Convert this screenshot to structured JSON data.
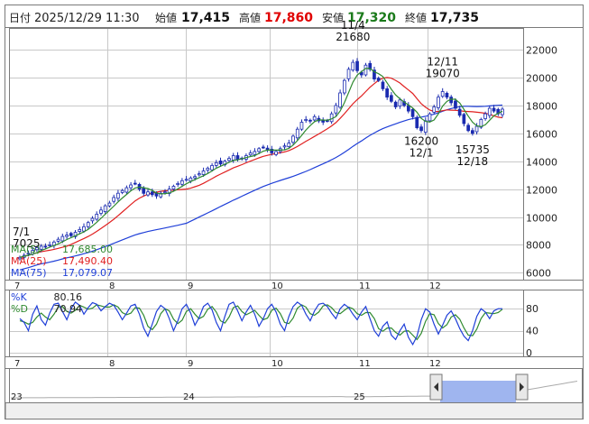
{
  "header": {
    "date_label": "日付",
    "datetime": "2025/12/29 11:30",
    "open_label": "始値",
    "open": "17,415",
    "high_label": "高値",
    "high": "17,860",
    "low_label": "安値",
    "low": "17,320",
    "close_label": "終値",
    "close": "17,735"
  },
  "colors": {
    "up_candle": "#ffffff",
    "down_candle": "#1a2bb0",
    "candle_outline": "#1a2bb0",
    "ma5": "#2f8a2f",
    "ma25": "#e02020",
    "ma75": "#1f3fd8",
    "stoch_k": "#1f3fd8",
    "stoch_d": "#2f8a2f",
    "high_text": "#e00000",
    "low_text": "#1a7a1a",
    "grid": "#c8c8c8",
    "border": "#7a7a7a",
    "nav_fill": "#9fb5ef"
  },
  "legend": [
    {
      "label": "MA(5)",
      "value": "17,685.00"
    },
    {
      "label": "MA(25)",
      "value": "17,490.40"
    },
    {
      "label": "MA(75)",
      "value": "17,079.07"
    }
  ],
  "stoch_legend": [
    {
      "label": "%K",
      "value": "80.16"
    },
    {
      "label": "%D",
      "value": "70.94"
    }
  ],
  "chart_data": {
    "type": "candlestick",
    "y_ticks": [
      "22000",
      "20000",
      "18000",
      "16000",
      "14000",
      "12000",
      "10000",
      "8000",
      "6000"
    ],
    "ylim": [
      5500,
      23500
    ],
    "month_labels": [
      "7",
      "8",
      "9",
      "10",
      "11",
      "12"
    ],
    "annotations": [
      {
        "date": "7/1",
        "value": "7025"
      },
      {
        "date": "11/4",
        "value": "21680"
      },
      {
        "date": "12/1",
        "value": "16200"
      },
      {
        "date": "12/11",
        "value": "19070"
      },
      {
        "date": "12/18",
        "value": "15735"
      }
    ],
    "closes": [
      7100,
      7250,
      7400,
      7600,
      7800,
      7900,
      7850,
      8000,
      8200,
      8400,
      8600,
      8700,
      8650,
      8900,
      9100,
      9300,
      9600,
      9900,
      10200,
      10500,
      10800,
      11000,
      11400,
      11700,
      11900,
      12100,
      12300,
      12400,
      12000,
      11700,
      11800,
      11600,
      11500,
      11700,
      11800,
      12000,
      12200,
      12400,
      12600,
      12700,
      12800,
      12900,
      13100,
      13300,
      13500,
      13700,
      13900,
      13800,
      14000,
      14200,
      14400,
      14100,
      14200,
      14400,
      14600,
      14700,
      14900,
      15000,
      14800,
      14600,
      14700,
      14900,
      15100,
      15300,
      15800,
      16300,
      16800,
      17000,
      16900,
      17200,
      16900,
      16800,
      16900,
      17400,
      18000,
      18900,
      19800,
      20600,
      21100,
      20500,
      20200,
      20900,
      20600,
      19900,
      19800,
      19200,
      18600,
      18300,
      17900,
      18400,
      18000,
      17600,
      17200,
      16400,
      16200,
      16900,
      17400,
      17900,
      18600,
      19000,
      18600,
      18200,
      17800,
      17300,
      16700,
      16200,
      16000,
      16500,
      17000,
      17400,
      17800,
      17600,
      17400,
      17735
    ],
    "stoch": {
      "k": [
        62,
        55,
        40,
        70,
        85,
        60,
        50,
        72,
        88,
        90,
        75,
        60,
        80,
        92,
        86,
        70,
        82,
        91,
        88,
        76,
        84,
        90,
        86,
        74,
        60,
        72,
        85,
        88,
        70,
        45,
        30,
        52,
        75,
        86,
        80,
        62,
        40,
        58,
        80,
        88,
        72,
        50,
        64,
        84,
        90,
        78,
        55,
        40,
        66,
        88,
        92,
        76,
        58,
        74,
        86,
        70,
        48,
        62,
        80,
        88,
        74,
        52,
        40,
        66,
        84,
        92,
        86,
        70,
        58,
        76,
        88,
        90,
        84,
        72,
        62,
        80,
        88,
        82,
        70,
        60,
        74,
        84,
        62,
        40,
        30,
        48,
        56,
        32,
        24,
        40,
        52,
        28,
        15,
        30,
        60,
        80,
        74,
        52,
        34,
        50,
        68,
        76,
        62,
        44,
        30,
        22,
        40,
        66,
        80,
        74,
        62,
        76,
        80,
        80
      ],
      "d": [
        58,
        56,
        52,
        55,
        65,
        72,
        65,
        60,
        70,
        83,
        84,
        75,
        72,
        77,
        86,
        83,
        79,
        81,
        87,
        85,
        83,
        83,
        87,
        83,
        73,
        69,
        72,
        82,
        81,
        68,
        48,
        42,
        52,
        71,
        80,
        76,
        61,
        53,
        59,
        75,
        80,
        70,
        62,
        66,
        79,
        84,
        74,
        58,
        54,
        65,
        82,
        85,
        75,
        69,
        73,
        77,
        68,
        60,
        63,
        77,
        81,
        71,
        55,
        53,
        63,
        81,
        87,
        83,
        71,
        68,
        74,
        85,
        87,
        82,
        73,
        71,
        77,
        83,
        80,
        71,
        68,
        73,
        73,
        62,
        44,
        39,
        45,
        45,
        37,
        32,
        39,
        40,
        32,
        24,
        35,
        57,
        71,
        69,
        53,
        45,
        51,
        65,
        69,
        61,
        45,
        32,
        31,
        43,
        62,
        73,
        72,
        71,
        73,
        79
      ]
    },
    "stoch_ticks": [
      "80",
      "40",
      "0"
    ],
    "nav_labels": [
      "23",
      "24",
      "25"
    ]
  }
}
